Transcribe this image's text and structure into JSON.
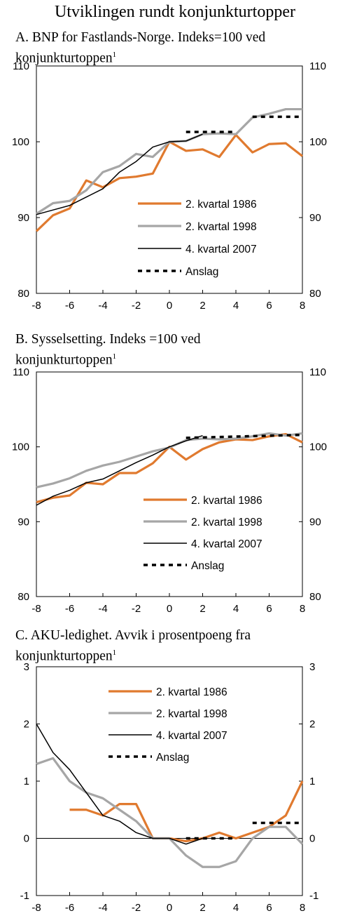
{
  "figure_title": "Utviklingen rundt konjunkturtopper",
  "colors": {
    "s1986": "#E07A2F",
    "s1998": "#A6A6A6",
    "s2007": "#000000",
    "forecast": "#000000"
  },
  "chart_data": [
    {
      "type": "line",
      "panel_label": "A.",
      "title_line1": "BNP for Fastlands-Norge. Indeks=100 ved",
      "title_line2": "konjunkturtoppen",
      "footnote_mark": "1",
      "ylim": [
        80,
        110
      ],
      "yticks": [
        "80",
        "90",
        "100",
        "110"
      ],
      "xlim": [
        -8,
        8
      ],
      "xticks": [
        "-8",
        "-6",
        "-4",
        "-2",
        "0",
        "2",
        "4",
        "6",
        "8"
      ],
      "right_axis": true,
      "legend_position": "lower-center",
      "series": [
        {
          "name": "2. kvartal 1986",
          "color": "#E07A2F",
          "style": "thick",
          "x": [
            -8,
            -7,
            -6,
            -5,
            -4,
            -3,
            -2,
            -1,
            0,
            1,
            2,
            3,
            4,
            5,
            6,
            7,
            8
          ],
          "y": [
            88.2,
            90.3,
            91.2,
            94.9,
            94.0,
            95.2,
            95.4,
            95.8,
            100.0,
            98.8,
            99.0,
            98.0,
            100.9,
            98.6,
            99.7,
            99.8,
            98.1
          ]
        },
        {
          "name": "2. kvartal 1998",
          "color": "#A6A6A6",
          "style": "thick",
          "x": [
            -8,
            -7,
            -6,
            -5,
            -4,
            -3,
            -2,
            -1,
            0,
            1,
            2,
            3,
            4,
            5,
            6,
            7,
            8
          ],
          "y": [
            90.5,
            91.9,
            92.2,
            93.6,
            96.0,
            96.8,
            98.4,
            98.0,
            100.0,
            100.1,
            101.0,
            101.1,
            101.0,
            103.2,
            103.7,
            104.3,
            104.3
          ]
        },
        {
          "name": "4. kvartal 2007",
          "color": "#000000",
          "style": "thin",
          "x": [
            -8,
            -7,
            -6,
            -5,
            -4,
            -3,
            -2,
            -1,
            0,
            1,
            2
          ],
          "y": [
            90.4,
            91.0,
            91.6,
            92.7,
            93.8,
            96.0,
            97.4,
            99.3,
            100.0,
            100.1,
            101.0
          ]
        },
        {
          "name": "Anslag",
          "color": "#000000",
          "style": "dashed-segments",
          "segments": [
            {
              "x": [
                1,
                4
              ],
              "y": [
                101.3,
                101.3
              ]
            },
            {
              "x": [
                5,
                8
              ],
              "y": [
                103.3,
                103.3
              ]
            }
          ]
        }
      ]
    },
    {
      "type": "line",
      "panel_label": "B.",
      "title_line1": "Sysselsetting. Indeks =100 ved",
      "title_line2": "konjunkturtoppen",
      "footnote_mark": "1",
      "ylim": [
        80,
        110
      ],
      "yticks": [
        "80",
        "90",
        "100",
        "110"
      ],
      "xlim": [
        -8,
        8
      ],
      "xticks": [
        "-8",
        "-6",
        "-4",
        "-2",
        "0",
        "2",
        "4",
        "6",
        "8"
      ],
      "right_axis": true,
      "legend_position": "lower-center",
      "series": [
        {
          "name": "2. kvartal 1986",
          "color": "#E07A2F",
          "style": "thick",
          "x": [
            -8,
            -7,
            -6,
            -5,
            -4,
            -3,
            -2,
            -1,
            0,
            1,
            2,
            3,
            4,
            5,
            6,
            7,
            8
          ],
          "y": [
            92.6,
            93.2,
            93.5,
            95.2,
            95.0,
            96.5,
            96.5,
            97.8,
            100.0,
            98.3,
            99.7,
            100.6,
            101.0,
            100.9,
            101.4,
            101.7,
            100.6
          ]
        },
        {
          "name": "2. kvartal 1998",
          "color": "#A6A6A6",
          "style": "thick",
          "x": [
            -8,
            -7,
            -6,
            -5,
            -4,
            -3,
            -2,
            -1,
            0,
            1,
            2,
            3,
            4,
            5,
            6,
            7,
            8
          ],
          "y": [
            94.6,
            95.1,
            95.8,
            96.8,
            97.5,
            98.0,
            98.7,
            99.4,
            99.9,
            100.9,
            101.1,
            101.0,
            101.1,
            101.4,
            101.8,
            101.5,
            101.8
          ]
        },
        {
          "name": "4. kvartal 2007",
          "color": "#000000",
          "style": "thin",
          "x": [
            -8,
            -7,
            -6,
            -5,
            -4,
            -3,
            -2,
            -1,
            0,
            1,
            2
          ],
          "y": [
            92.2,
            93.4,
            94.2,
            95.2,
            95.7,
            96.8,
            97.9,
            98.9,
            100.0,
            100.8,
            101.5
          ]
        },
        {
          "name": "Anslag",
          "color": "#000000",
          "style": "dashed-segments",
          "segments": [
            {
              "x": [
                1,
                8
              ],
              "y": [
                101.2,
                101.6
              ]
            }
          ]
        }
      ]
    },
    {
      "type": "line",
      "panel_label": "C.",
      "title_line1": "AKU-ledighet. Avvik i prosentpoeng fra",
      "title_line2": "konjunkturtoppen",
      "footnote_mark": "1",
      "ylim": [
        -1,
        3
      ],
      "yticks": [
        "-1",
        "0",
        "1",
        "2",
        "3"
      ],
      "xlim": [
        -8,
        8
      ],
      "xticks": [
        "-8",
        "-6",
        "-4",
        "-2",
        "0",
        "2",
        "4",
        "6",
        "8"
      ],
      "right_axis": true,
      "zero_line": true,
      "legend_position": "upper-center",
      "series": [
        {
          "name": "2. kvartal 1986",
          "color": "#E07A2F",
          "style": "thick",
          "x": [
            -6,
            -5,
            -4,
            -3,
            -2,
            -1,
            0,
            1,
            2,
            3,
            4,
            5,
            6,
            7,
            8
          ],
          "y": [
            0.5,
            0.5,
            0.4,
            0.6,
            0.6,
            0.0,
            0.0,
            -0.05,
            0.0,
            0.1,
            0.0,
            0.1,
            0.2,
            0.4,
            1.0
          ]
        },
        {
          "name": "2. kvartal 1998",
          "color": "#A6A6A6",
          "style": "thick",
          "x": [
            -8,
            -7,
            -6,
            -5,
            -4,
            -3,
            -2,
            -1,
            0,
            1,
            2,
            3,
            4,
            5,
            6,
            7,
            8
          ],
          "y": [
            1.3,
            1.4,
            1.0,
            0.8,
            0.7,
            0.5,
            0.3,
            0.0,
            0.0,
            -0.3,
            -0.5,
            -0.5,
            -0.4,
            0.0,
            0.2,
            0.2,
            -0.1
          ]
        },
        {
          "name": "4. kvartal 2007",
          "color": "#000000",
          "style": "thin",
          "x": [
            -8,
            -7,
            -6,
            -5,
            -4,
            -3,
            -2,
            -1,
            0,
            1,
            2
          ],
          "y": [
            2.0,
            1.5,
            1.2,
            0.8,
            0.4,
            0.3,
            0.1,
            0.0,
            0.0,
            -0.1,
            0.0
          ]
        },
        {
          "name": "Anslag",
          "color": "#000000",
          "style": "dashed-segments",
          "segments": [
            {
              "x": [
                1,
                4
              ],
              "y": [
                0.0,
                0.0
              ]
            },
            {
              "x": [
                5,
                8
              ],
              "y": [
                0.27,
                0.27
              ]
            }
          ]
        }
      ]
    }
  ]
}
